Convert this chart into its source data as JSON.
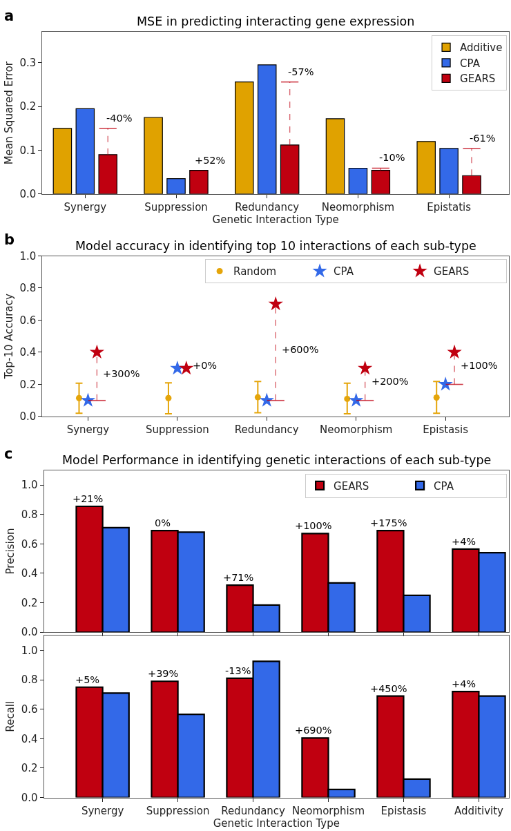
{
  "chart_data": [
    {
      "type": "bar",
      "title": "MSE in predicting interacting gene expression",
      "xlabel": "Genetic Interaction Type",
      "ylabel": "Mean Squared Error",
      "categories": [
        "Synergy",
        "Suppression",
        "Redundancy",
        "Neomorphism",
        "Epistatis"
      ],
      "series": [
        {
          "name": "Additive",
          "color": "#e0a200",
          "values": [
            0.15,
            0.175,
            0.256,
            0.172,
            0.12
          ]
        },
        {
          "name": "CPA",
          "color": "#3369e8",
          "values": [
            0.195,
            0.035,
            0.295,
            0.059,
            0.104
          ]
        },
        {
          "name": "GEARS",
          "color": "#c00010",
          "values": [
            0.09,
            0.054,
            0.112,
            0.054,
            0.042
          ],
          "errors": [
            [
              0.09,
              0.15
            ],
            null,
            [
              0.112,
              0.256
            ],
            [
              0.054,
              0.059
            ],
            [
              0.042,
              0.104
            ]
          ]
        }
      ],
      "ylim": [
        0,
        0.37
      ],
      "yticks": [
        {
          "value": 0,
          "label": "0.0"
        },
        {
          "value": 0.1,
          "label": "0.1"
        },
        {
          "value": 0.2,
          "label": "0.2"
        },
        {
          "value": 0.3,
          "label": "0.3"
        }
      ],
      "grid": false,
      "legend": "top right",
      "annotations": [
        "a",
        "-40%",
        "+52%",
        "-57%",
        "-10%",
        "-61%"
      ]
    },
    {
      "type": "scatter",
      "title": "Model accuracy in identifying top 10 interactions of each sub-type",
      "ylabel": "Top-10 Accuracy",
      "categories": [
        "Synergy",
        "Suppression",
        "Redundancy",
        "Neomorphism",
        "Epistasis"
      ],
      "series": [
        {
          "name": "Random",
          "color": "#e5a50a",
          "marker": "circle",
          "values": [
            0.115,
            0.115,
            0.12,
            0.11,
            0.118
          ],
          "errors": [
            [
              0.02,
              0.207
            ],
            [
              0.017,
              0.21
            ],
            [
              0.024,
              0.218
            ],
            [
              0.017,
              0.207
            ],
            [
              0.02,
              0.218
            ]
          ]
        },
        {
          "name": "CPA",
          "color": "#3369e8",
          "marker": "star",
          "values": [
            0.1,
            0.3,
            0.1,
            0.1,
            0.2
          ]
        },
        {
          "name": "GEARS",
          "color": "#c00010",
          "marker": "star",
          "values": [
            0.4,
            0.3,
            0.7,
            0.3,
            0.4
          ],
          "errors": [
            [
              0.1,
              0.4
            ],
            null,
            [
              0.1,
              0.7
            ],
            [
              0.1,
              0.3
            ],
            [
              0.2,
              0.4
            ]
          ]
        }
      ],
      "ylim": [
        0,
        1
      ],
      "yticks": [
        {
          "value": 0,
          "label": "0.0"
        },
        {
          "value": 0.2,
          "label": "0.2"
        },
        {
          "value": 0.4,
          "label": "0.4"
        },
        {
          "value": 0.6,
          "label": "0.6"
        },
        {
          "value": 0.8,
          "label": "0.8"
        },
        {
          "value": 1,
          "label": "1.0"
        }
      ],
      "grid": false,
      "legend": "top right",
      "annotations": [
        "b",
        "+300%",
        "+0%",
        "+600%",
        "+200%",
        "+100%"
      ]
    },
    {
      "type": "bar",
      "title": "Model Performance in identifying genetic interactions of each sub-type",
      "ylabel": "Precision",
      "categories": [
        "Synergy",
        "Suppression",
        "Redundancy",
        "Neomorphism",
        "Epistasis",
        "Additivity"
      ],
      "series": [
        {
          "name": "GEARS",
          "color": "#c00010",
          "values": [
            0.855,
            0.69,
            0.32,
            0.67,
            0.69,
            0.565
          ]
        },
        {
          "name": "CPA",
          "color": "#3369e8",
          "values": [
            0.71,
            0.68,
            0.185,
            0.335,
            0.25,
            0.54
          ]
        }
      ],
      "ylim": [
        0,
        1.1
      ],
      "yticks": [
        {
          "value": 0,
          "label": "0.0"
        },
        {
          "value": 0.2,
          "label": "0.2"
        },
        {
          "value": 0.4,
          "label": "0.4"
        },
        {
          "value": 0.6,
          "label": "0.6"
        },
        {
          "value": 0.8,
          "label": "0.8"
        },
        {
          "value": 1,
          "label": "1.0"
        }
      ],
      "grid": false,
      "legend": "top right",
      "tick_labels": "y",
      "annotations": [
        "c",
        {
          "text": "+21%",
          "x": "Synergy",
          "y": 0.855
        },
        {
          "text": "0%",
          "x": "Suppression",
          "y": 0.69
        },
        {
          "text": "+71%",
          "x": "Redundancy",
          "y": 0.32
        },
        {
          "text": "+100%",
          "x": "Neomorphism",
          "y": 0.67
        },
        {
          "text": "+175%",
          "x": "Epistasis",
          "y": 0.69
        },
        {
          "text": "+4%",
          "x": "Additivity",
          "y": 0.565
        }
      ]
    },
    {
      "type": "bar",
      "xlabel": "Genetic Interaction Type",
      "ylabel": "Recall",
      "categories": [
        "Synergy",
        "Suppression",
        "Redundancy",
        "Neomorphism",
        "Epistasis",
        "Additivity"
      ],
      "series": [
        {
          "color": "#c00010",
          "values": [
            0.75,
            0.79,
            0.81,
            0.405,
            0.69,
            0.72
          ]
        },
        {
          "color": "#3369e8",
          "values": [
            0.71,
            0.565,
            0.925,
            0.055,
            0.125,
            0.69
          ]
        }
      ],
      "ylim": [
        0,
        1.1
      ],
      "yticks": [
        {
          "value": 0,
          "label": "0.0"
        },
        {
          "value": 0.2,
          "label": "0.2"
        },
        {
          "value": 0.4,
          "label": "0.4"
        },
        {
          "value": 0.6,
          "label": "0.6"
        },
        {
          "value": 0.8,
          "label": "0.8"
        },
        {
          "value": 1,
          "label": "1.0"
        }
      ],
      "grid": false,
      "annotations": [
        {
          "text": "+5%",
          "x": "Synergy",
          "y": 0.75
        },
        {
          "text": "+39%",
          "x": "Suppression",
          "y": 0.79
        },
        {
          "text": "-13%",
          "x": "Redundancy",
          "y": 0.81
        },
        {
          "text": "+690%",
          "x": "Neomorphism",
          "y": 0.405
        },
        {
          "text": "+450%",
          "x": "Epistasis",
          "y": 0.69
        },
        {
          "text": "+4%",
          "x": "Additivity",
          "y": 0.72
        }
      ]
    }
  ]
}
